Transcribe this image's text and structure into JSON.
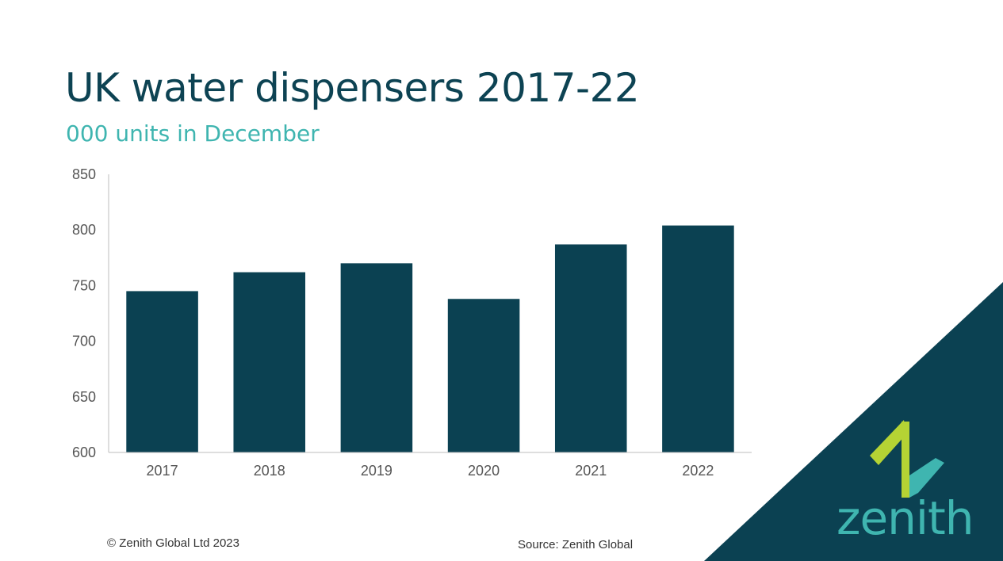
{
  "title": "UK water dispensers 2017-22",
  "subtitle": "000 units in December",
  "footer": {
    "copyright": "© Zenith Global Ltd 2023",
    "source": "Source: Zenith Global"
  },
  "brand": {
    "name": "zenith",
    "colors": {
      "dark": "#0b4152",
      "teal": "#3fb5b0",
      "lime": "#b5d334"
    }
  },
  "chart_data": {
    "type": "bar",
    "categories": [
      "2017",
      "2018",
      "2019",
      "2020",
      "2021",
      "2022"
    ],
    "values": [
      745,
      762,
      770,
      738,
      787,
      804
    ],
    "ylim": [
      600,
      850
    ],
    "yticks": [
      600,
      650,
      700,
      750,
      800,
      850
    ],
    "ytick_labels": [
      "600",
      "650",
      "700",
      "750",
      "800",
      "850"
    ],
    "bar_color": "#0b4152",
    "grid": false,
    "legend": "none"
  }
}
